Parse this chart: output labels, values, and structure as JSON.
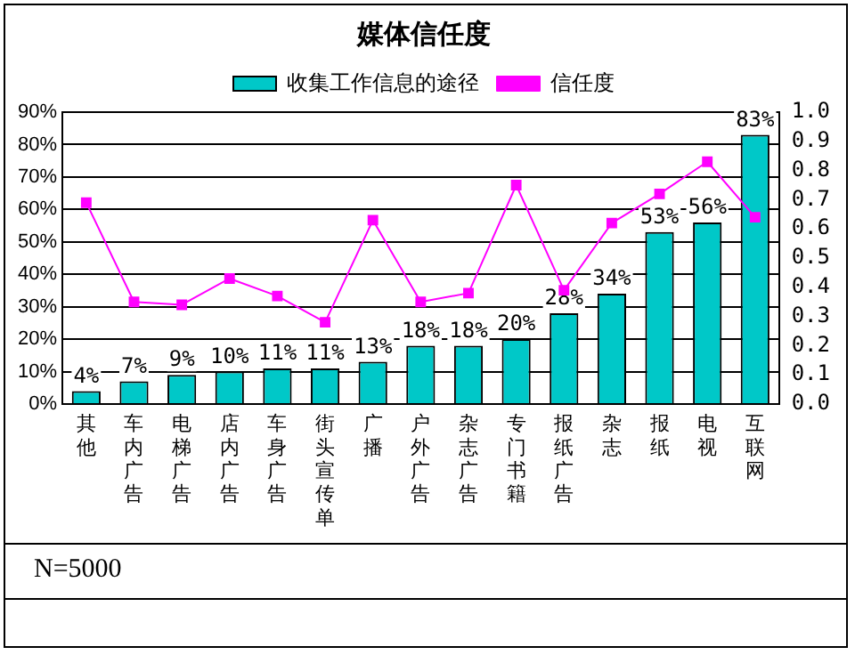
{
  "chart_data": {
    "type": "bar",
    "title": "媒体信任度",
    "categories": [
      "其他",
      "车内广告",
      "电梯广告",
      "店内广告",
      "车身广告",
      "街头宣传单",
      "广播",
      "户外广告",
      "杂志广告",
      "专门书籍",
      "报纸广告",
      "杂志",
      "报纸",
      "电视",
      "互联网"
    ],
    "series": [
      {
        "name": "收集工作信息的途径",
        "color": "#00c8c8",
        "values": [
          4,
          7,
          9,
          10,
          11,
          11,
          13,
          18,
          18,
          20,
          28,
          34,
          53,
          56,
          83
        ],
        "value_labels": [
          "4%",
          "7%",
          "9%",
          "10%",
          "11%",
          "11%",
          "13%",
          "18%",
          "18%",
          "20%",
          "28%",
          "34%",
          "53%",
          "56%",
          "83%"
        ]
      },
      {
        "name": "信任度",
        "type": "line",
        "axis": "y2",
        "color": "#ff00ff",
        "values": [
          0.69,
          0.35,
          0.34,
          0.43,
          0.37,
          0.28,
          0.63,
          0.35,
          0.38,
          0.75,
          0.39,
          0.62,
          0.72,
          0.83,
          0.64
        ]
      }
    ],
    "ylim": [
      0,
      90
    ],
    "yticks": [
      {
        "value": 0,
        "label": "0%"
      },
      {
        "value": 10,
        "label": "10%"
      },
      {
        "value": 20,
        "label": "20%"
      },
      {
        "value": 30,
        "label": "30%"
      },
      {
        "value": 40,
        "label": "40%"
      },
      {
        "value": 50,
        "label": "50%"
      },
      {
        "value": 60,
        "label": "60%"
      },
      {
        "value": 70,
        "label": "70%"
      },
      {
        "value": 80,
        "label": "80%"
      },
      {
        "value": 90,
        "label": "90%"
      }
    ],
    "y2lim": [
      0,
      1
    ],
    "y2ticks": [
      {
        "value": 0,
        "label": "0.0"
      },
      {
        "value": 0.1,
        "label": "0.1"
      },
      {
        "value": 0.2,
        "label": "0.2"
      },
      {
        "value": 0.3,
        "label": "0.3"
      },
      {
        "value": 0.4,
        "label": "0.4"
      },
      {
        "value": 0.5,
        "label": "0.5"
      },
      {
        "value": 0.6,
        "label": "0.6"
      },
      {
        "value": 0.7,
        "label": "0.7"
      },
      {
        "value": 0.8,
        "label": "0.8"
      },
      {
        "value": 0.9,
        "label": "0.9"
      },
      {
        "value": 1,
        "label": "1.0"
      }
    ],
    "grid": "y",
    "legend": "top",
    "marker": "square",
    "line_style": "solid",
    "annotations": [
      "N=5000"
    ]
  }
}
